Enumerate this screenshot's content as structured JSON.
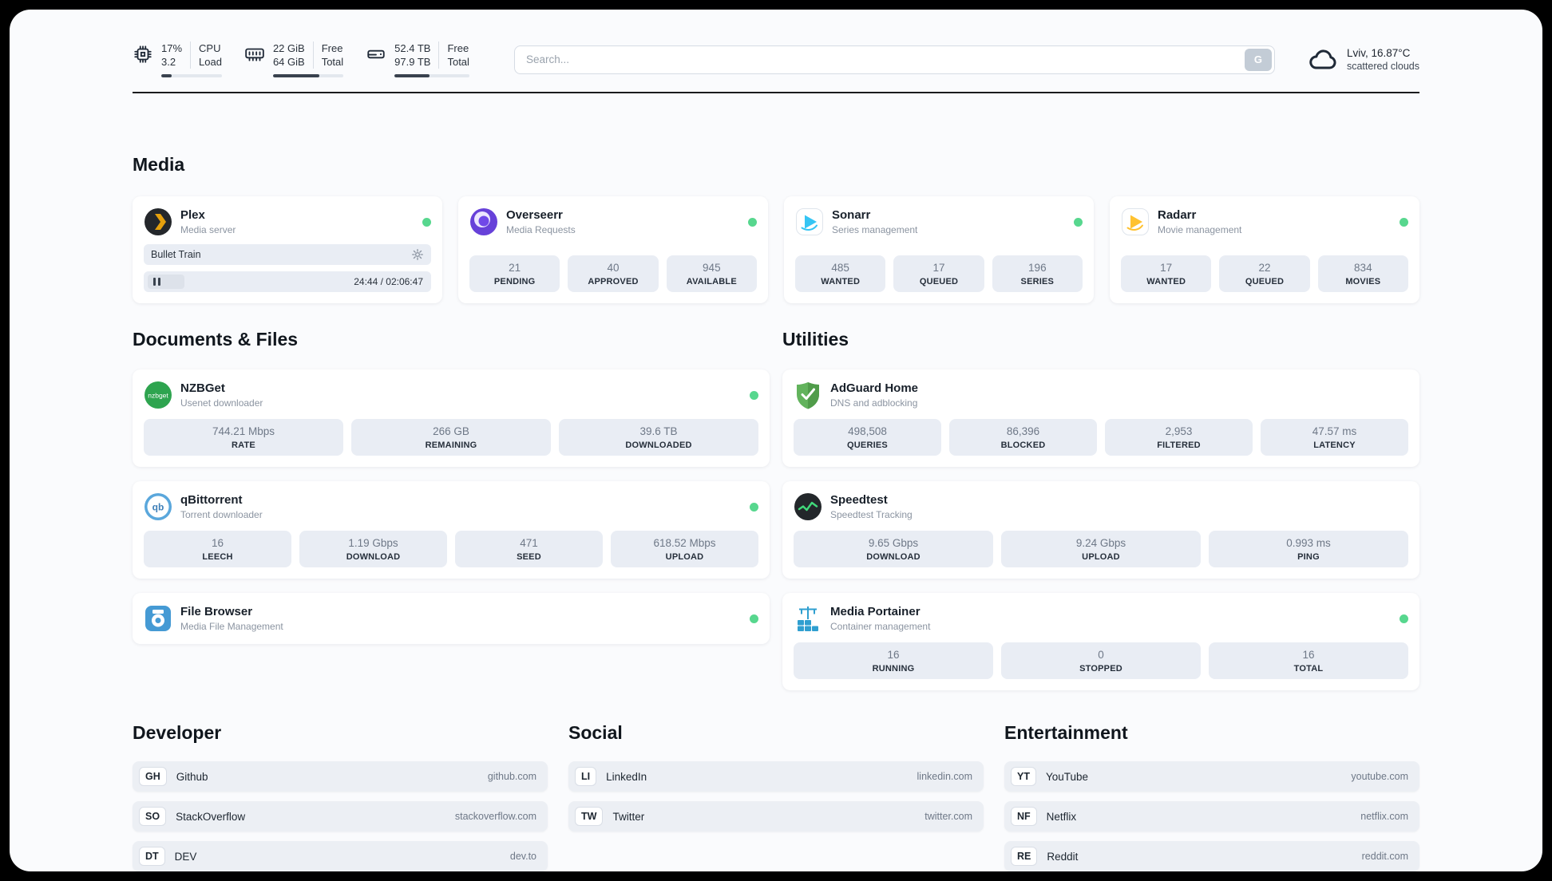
{
  "topbar": {
    "cpu": {
      "icon": "cpu-chip",
      "percent": "17%",
      "value": "3.2",
      "label_top": "CPU",
      "label_bottom": "Load",
      "progress": 17
    },
    "memory": {
      "icon": "ram",
      "free": "22 GiB",
      "total": "64 GiB",
      "label_top": "Free",
      "label_bottom": "Total",
      "progress": 66
    },
    "disk": {
      "icon": "hard-drive",
      "free": "52.4 TB",
      "total": "97.9 TB",
      "label_top": "Free",
      "label_bottom": "Total",
      "progress": 47
    },
    "search": {
      "placeholder": "Search...",
      "button_label": "G"
    },
    "weather": {
      "icon": "cloud",
      "location": "Lviv, 16.87°C",
      "condition": "scattered clouds"
    }
  },
  "colors": {
    "status_online": "#57d78e",
    "plex_accent": "#e5a00d",
    "overseerr_purple": "#6741d9",
    "sonarr_blue": "#35c5f4",
    "radarr_yellow": "#ffc230",
    "nzbget_green": "#2ea44f",
    "qbittorrent_blue": "#5aa7dc",
    "filebrowser_blue": "#459ad4",
    "adguard_green": "#62b35c",
    "speedtest_pulse": "#40d97a",
    "portainer_blue": "#2f9fd0"
  },
  "sections": {
    "media": {
      "title": "Media",
      "plex": {
        "name": "Plex",
        "subtitle": "Media server",
        "icon": "plex",
        "online": true,
        "now_playing": "Bullet Train",
        "time": "24:44 / 02:06:47",
        "progress": 20
      },
      "cards": [
        {
          "name": "Overseerr",
          "subtitle": "Media Requests",
          "icon": "overseerr",
          "online": true,
          "stats": [
            {
              "value": "21",
              "label": "PENDING"
            },
            {
              "value": "40",
              "label": "APPROVED"
            },
            {
              "value": "945",
              "label": "AVAILABLE"
            }
          ]
        },
        {
          "name": "Sonarr",
          "subtitle": "Series management",
          "icon": "sonarr",
          "online": true,
          "stats": [
            {
              "value": "485",
              "label": "WANTED"
            },
            {
              "value": "17",
              "label": "QUEUED"
            },
            {
              "value": "196",
              "label": "SERIES"
            }
          ]
        },
        {
          "name": "Radarr",
          "subtitle": "Movie management",
          "icon": "radarr",
          "online": true,
          "stats": [
            {
              "value": "17",
              "label": "WANTED"
            },
            {
              "value": "22",
              "label": "QUEUED"
            },
            {
              "value": "834",
              "label": "MOVIES"
            }
          ]
        }
      ]
    },
    "documents": {
      "title": "Documents & Files",
      "cards": [
        {
          "name": "NZBGet",
          "subtitle": "Usenet downloader",
          "icon": "nzbget",
          "online": true,
          "stats": [
            {
              "value": "744.21 Mbps",
              "label": "RATE"
            },
            {
              "value": "266 GB",
              "label": "REMAINING"
            },
            {
              "value": "39.6 TB",
              "label": "DOWNLOADED"
            }
          ]
        },
        {
          "name": "qBittorrent",
          "subtitle": "Torrent downloader",
          "icon": "qbittorrent",
          "online": true,
          "stats": [
            {
              "value": "16",
              "label": "LEECH"
            },
            {
              "value": "1.19 Gbps",
              "label": "DOWNLOAD"
            },
            {
              "value": "471",
              "label": "SEED"
            },
            {
              "value": "618.52 Mbps",
              "label": "UPLOAD"
            }
          ]
        },
        {
          "name": "File Browser",
          "subtitle": "Media File Management",
          "icon": "filebrowser",
          "online": true,
          "stats": []
        }
      ]
    },
    "utilities": {
      "title": "Utilities",
      "cards": [
        {
          "name": "AdGuard Home",
          "subtitle": "DNS and adblocking",
          "icon": "adguard",
          "online": false,
          "stats": [
            {
              "value": "498,508",
              "label": "QUERIES"
            },
            {
              "value": "86,396",
              "label": "BLOCKED"
            },
            {
              "value": "2,953",
              "label": "FILTERED"
            },
            {
              "value": "47.57 ms",
              "label": "LATENCY"
            }
          ]
        },
        {
          "name": "Speedtest",
          "subtitle": "Speedtest Tracking",
          "icon": "speedtest",
          "online": false,
          "stats": [
            {
              "value": "9.65 Gbps",
              "label": "DOWNLOAD"
            },
            {
              "value": "9.24 Gbps",
              "label": "UPLOAD"
            },
            {
              "value": "0.993 ms",
              "label": "PING"
            }
          ]
        },
        {
          "name": "Media Portainer",
          "subtitle": "Container management",
          "icon": "portainer",
          "online": true,
          "stats": [
            {
              "value": "16",
              "label": "RUNNING"
            },
            {
              "value": "0",
              "label": "STOPPED"
            },
            {
              "value": "16",
              "label": "TOTAL"
            }
          ]
        }
      ]
    },
    "developer": {
      "title": "Developer",
      "links": [
        {
          "abbr": "GH",
          "name": "Github",
          "url": "github.com"
        },
        {
          "abbr": "SO",
          "name": "StackOverflow",
          "url": "stackoverflow.com"
        },
        {
          "abbr": "DT",
          "name": "DEV",
          "url": "dev.to"
        }
      ]
    },
    "social": {
      "title": "Social",
      "links": [
        {
          "abbr": "LI",
          "name": "LinkedIn",
          "url": "linkedin.com"
        },
        {
          "abbr": "TW",
          "name": "Twitter",
          "url": "twitter.com"
        }
      ]
    },
    "entertainment": {
      "title": "Entertainment",
      "links": [
        {
          "abbr": "YT",
          "name": "YouTube",
          "url": "youtube.com"
        },
        {
          "abbr": "NF",
          "name": "Netflix",
          "url": "netflix.com"
        },
        {
          "abbr": "RE",
          "name": "Reddit",
          "url": "reddit.com"
        }
      ]
    }
  }
}
